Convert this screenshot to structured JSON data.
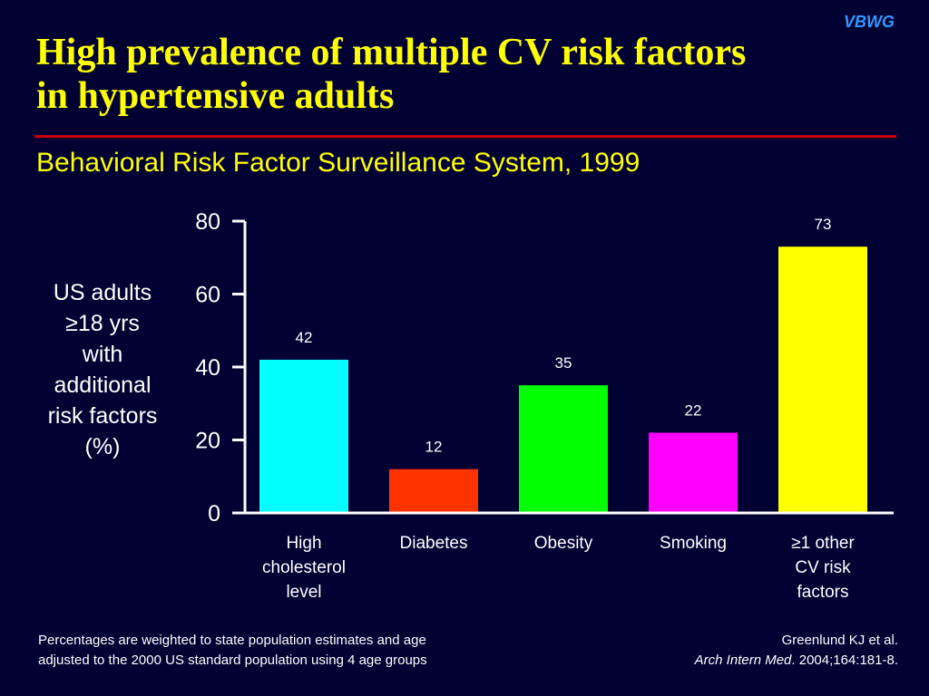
{
  "brand": "VBWG",
  "title_line1": "High prevalence of multiple CV risk factors",
  "title_line2": "in hypertensive adults",
  "subtitle": "Behavioral Risk Factor Surveillance System, 1999",
  "y_axis_label_lines": [
    "US adults",
    "≥18 yrs",
    "with",
    "additional",
    "risk factors",
    "(%)"
  ],
  "footnote_lines": [
    "Percentages are weighted to state population estimates and age",
    "adjusted to the 2000 US standard population using 4 age groups"
  ],
  "citation": {
    "line1": "Greenlund KJ et al.",
    "journal": "Arch Intern Med",
    "line2_rest": ". 2004;164:181-8."
  },
  "chart_data": {
    "type": "bar",
    "categories": [
      [
        "High",
        "cholesterol",
        "level"
      ],
      [
        "Diabetes"
      ],
      [
        "Obesity"
      ],
      [
        "Smoking"
      ],
      [
        "≥1 other",
        "CV risk",
        "factors"
      ]
    ],
    "values": [
      42,
      12,
      35,
      22,
      73
    ],
    "data_labels": [
      "42",
      "12",
      "35",
      "22",
      "73"
    ],
    "colors": [
      "#00ffff",
      "#ff3300",
      "#00ff00",
      "#ff00ff",
      "#ffff00"
    ],
    "ylim": [
      0,
      80
    ],
    "yticks": [
      0,
      20,
      40,
      60,
      80
    ],
    "grid": false,
    "legend": "none"
  }
}
